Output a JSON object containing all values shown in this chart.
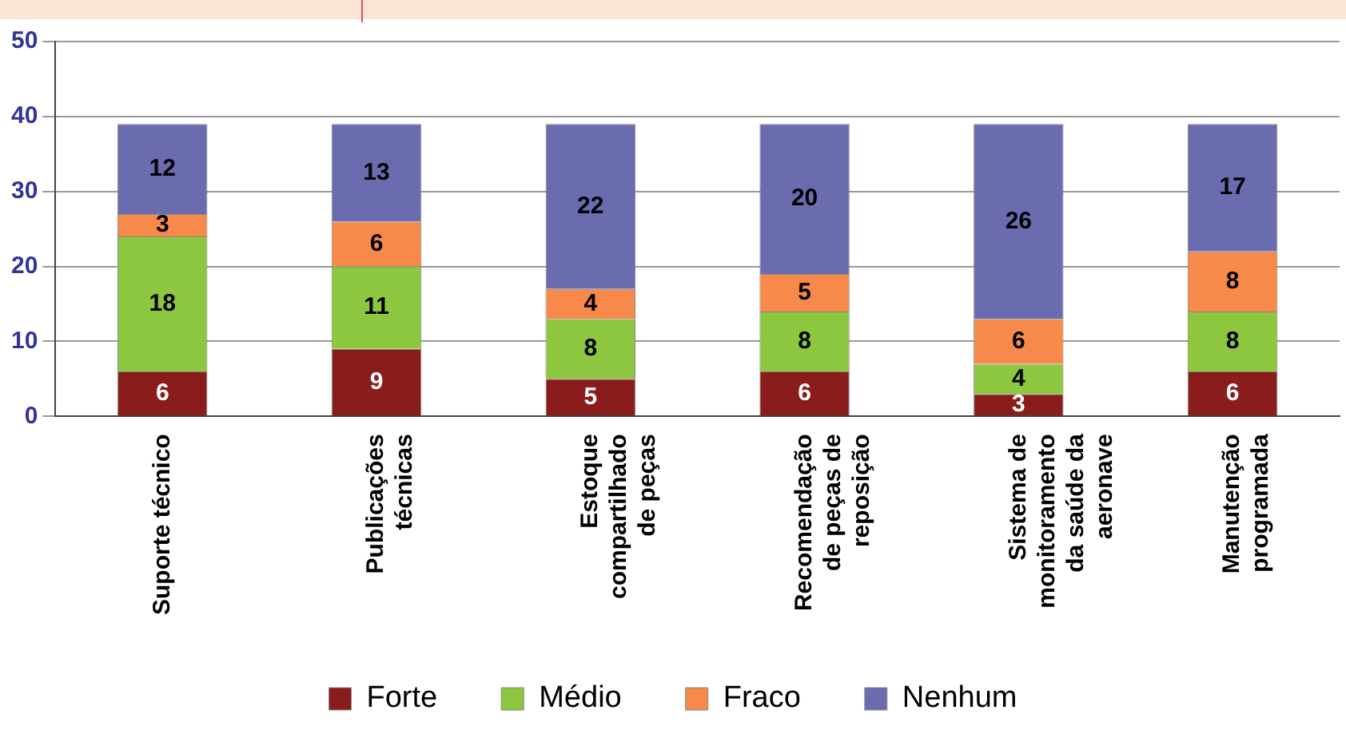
{
  "chart_data": {
    "type": "bar",
    "stacked": true,
    "categories": [
      "Suporte técnico",
      "Publicações\ntécnicas",
      "Estoque\ncompartilhado\nde peças",
      "Recomendação\nde peças de\nreposição",
      "Sistema de\nmonitoramento\nda saúde da\naeronave",
      "Manutenção\nprogramada"
    ],
    "series": [
      {
        "name": "Forte",
        "color": "#8b1c1c",
        "values": [
          6,
          9,
          5,
          6,
          3,
          6
        ]
      },
      {
        "name": "Médio",
        "color": "#8dc63f",
        "values": [
          18,
          11,
          8,
          8,
          4,
          8
        ]
      },
      {
        "name": "Fraco",
        "color": "#f7894a",
        "values": [
          3,
          6,
          4,
          5,
          6,
          8
        ]
      },
      {
        "name": "Nenhum",
        "color": "#6b6bb0",
        "values": [
          12,
          13,
          22,
          20,
          26,
          17
        ]
      }
    ],
    "ylim": [
      0,
      50
    ],
    "yticks": [
      0,
      10,
      20,
      30,
      40,
      50
    ],
    "grid": "y",
    "legend": "bottom",
    "data_labels": true
  }
}
